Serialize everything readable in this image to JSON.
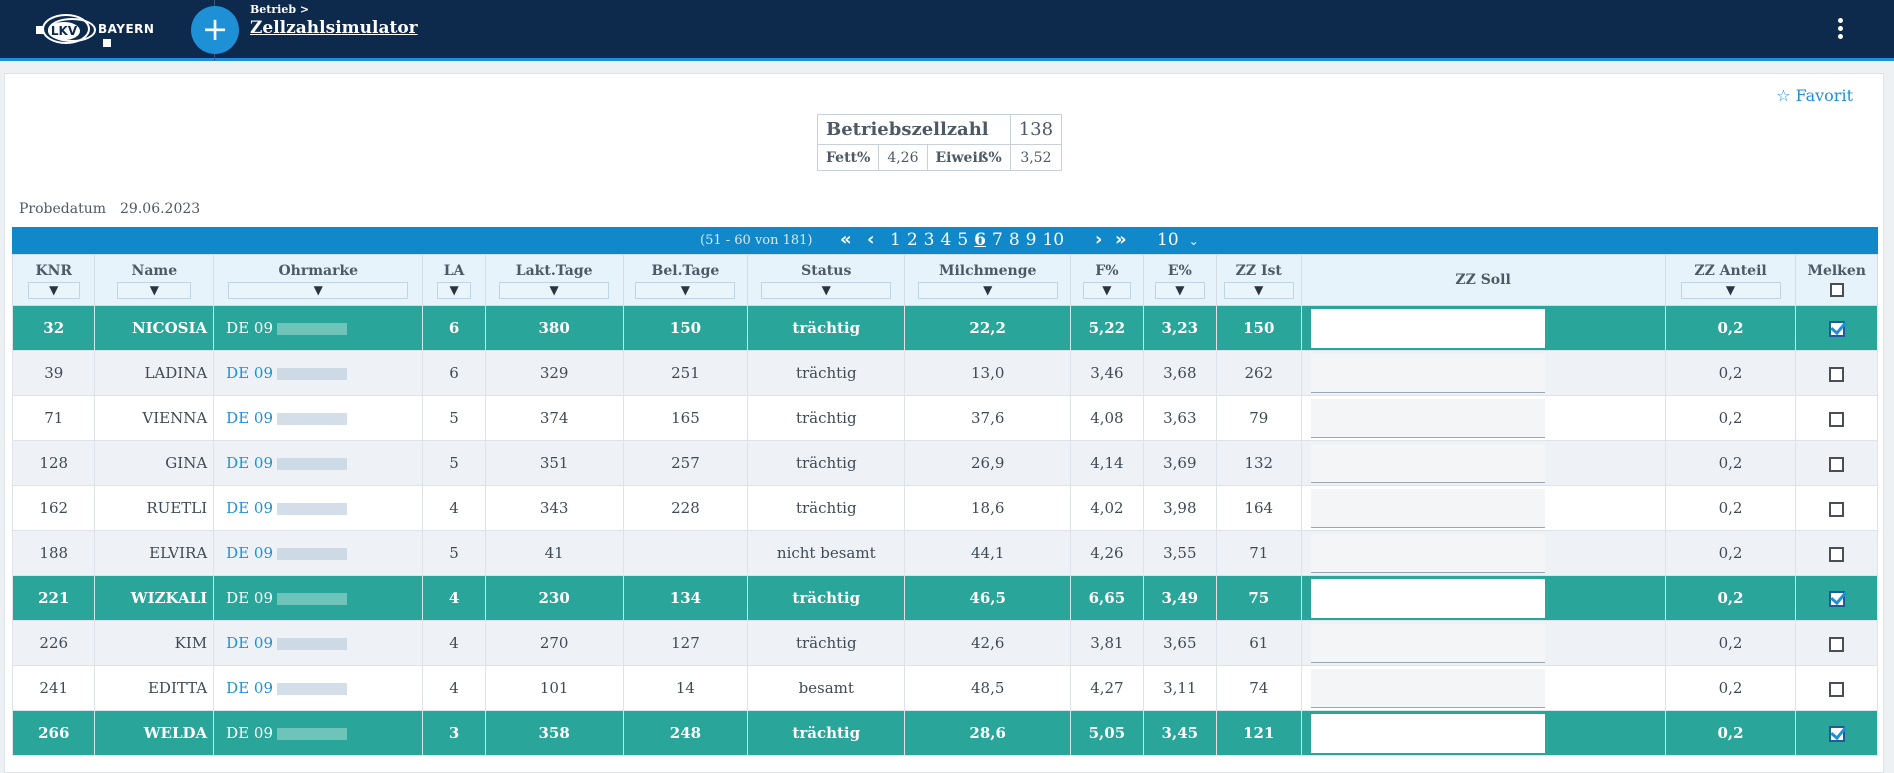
{
  "header": {
    "logo_text": "LKV",
    "logo_region": "BAYERN",
    "breadcrumb": "Betrieb >",
    "title": "Zellzahlsimulator"
  },
  "favorite": {
    "label": "Favorit",
    "icon": "star-icon"
  },
  "summary": {
    "betriebszellzahl_label": "Betriebszellzahl",
    "betriebszellzahl_value": "138",
    "fett_label": "Fett%",
    "fett_value": "4,26",
    "eiweiss_label": "Eiweiß%",
    "eiweiss_value": "3,52"
  },
  "probedatum": {
    "label": "Probedatum",
    "value": "29.06.2023"
  },
  "pager": {
    "range": "(51 - 60 von 181)",
    "pages": [
      "1",
      "2",
      "3",
      "4",
      "5",
      "6",
      "7",
      "8",
      "9",
      "10"
    ],
    "current_page": "6",
    "page_size": "10"
  },
  "columns": [
    "KNR",
    "Name",
    "Ohrmarke",
    "LA",
    "Lakt.Tage",
    "Bel.Tage",
    "Status",
    "Milchmenge",
    "F%",
    "E%",
    "ZZ Ist",
    "ZZ Soll",
    "ZZ Anteil",
    "Melken"
  ],
  "rows": [
    {
      "knr": "32",
      "name": "NICOSIA",
      "ohr": "DE 09",
      "la": "6",
      "lakt": "380",
      "bel": "150",
      "status": "trächtig",
      "milch": "22,2",
      "f": "5,22",
      "e": "3,23",
      "zzist": "150",
      "anteil": "0,2",
      "melken": true
    },
    {
      "knr": "39",
      "name": "LADINA",
      "ohr": "DE 09",
      "la": "6",
      "lakt": "329",
      "bel": "251",
      "status": "trächtig",
      "milch": "13,0",
      "f": "3,46",
      "e": "3,68",
      "zzist": "262",
      "anteil": "0,2",
      "melken": false
    },
    {
      "knr": "71",
      "name": "VIENNA",
      "ohr": "DE 09",
      "la": "5",
      "lakt": "374",
      "bel": "165",
      "status": "trächtig",
      "milch": "37,6",
      "f": "4,08",
      "e": "3,63",
      "zzist": "79",
      "anteil": "0,2",
      "melken": false
    },
    {
      "knr": "128",
      "name": "GINA",
      "ohr": "DE 09",
      "la": "5",
      "lakt": "351",
      "bel": "257",
      "status": "trächtig",
      "milch": "26,9",
      "f": "4,14",
      "e": "3,69",
      "zzist": "132",
      "anteil": "0,2",
      "melken": false
    },
    {
      "knr": "162",
      "name": "RUETLI",
      "ohr": "DE 09",
      "la": "4",
      "lakt": "343",
      "bel": "228",
      "status": "trächtig",
      "milch": "18,6",
      "f": "4,02",
      "e": "3,98",
      "zzist": "164",
      "anteil": "0,2",
      "melken": false
    },
    {
      "knr": "188",
      "name": "ELVIRA",
      "ohr": "DE 09",
      "la": "5",
      "lakt": "41",
      "bel": "",
      "status": "nicht besamt",
      "milch": "44,1",
      "f": "4,26",
      "e": "3,55",
      "zzist": "71",
      "anteil": "0,2",
      "melken": false
    },
    {
      "knr": "221",
      "name": "WIZKALI",
      "ohr": "DE 09",
      "la": "4",
      "lakt": "230",
      "bel": "134",
      "status": "trächtig",
      "milch": "46,5",
      "f": "6,65",
      "e": "3,49",
      "zzist": "75",
      "anteil": "0,2",
      "melken": true
    },
    {
      "knr": "226",
      "name": "KIM",
      "ohr": "DE 09",
      "la": "4",
      "lakt": "270",
      "bel": "127",
      "status": "trächtig",
      "milch": "42,6",
      "f": "3,81",
      "e": "3,65",
      "zzist": "61",
      "anteil": "0,2",
      "melken": false
    },
    {
      "knr": "241",
      "name": "EDITTA",
      "ohr": "DE 09",
      "la": "4",
      "lakt": "101",
      "bel": "14",
      "status": "besamt",
      "milch": "48,5",
      "f": "4,27",
      "e": "3,11",
      "zzist": "74",
      "anteil": "0,2",
      "melken": false
    },
    {
      "knr": "266",
      "name": "WELDA",
      "ohr": "DE 09",
      "la": "3",
      "lakt": "358",
      "bel": "248",
      "status": "trächtig",
      "milch": "28,6",
      "f": "5,05",
      "e": "3,45",
      "zzist": "121",
      "anteil": "0,2",
      "melken": true
    }
  ]
}
